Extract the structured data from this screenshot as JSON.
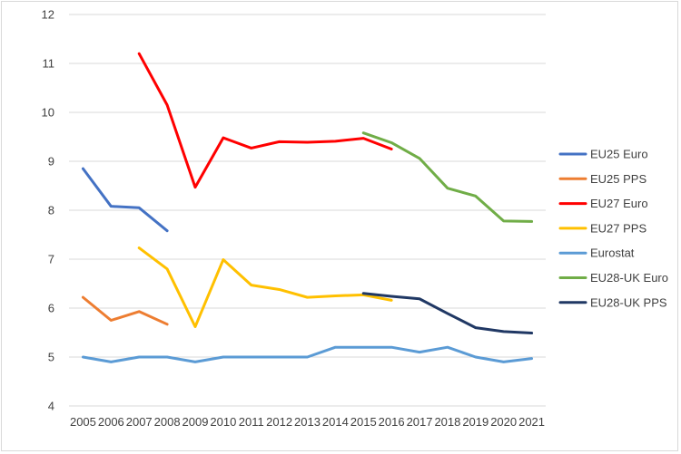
{
  "chart_data": {
    "type": "line",
    "title": "",
    "xlabel": "",
    "ylabel": "",
    "ylim": [
      4,
      12
    ],
    "yticks": [
      4,
      5,
      6,
      7,
      8,
      9,
      10,
      11,
      12
    ],
    "grid": true,
    "legend_position": "right",
    "x": [
      "2005",
      "2006",
      "2007",
      "2008",
      "2009",
      "2010",
      "2011",
      "2012",
      "2013",
      "2014",
      "2015",
      "2016",
      "2017",
      "2018",
      "2019",
      "2020",
      "2021"
    ],
    "series": [
      {
        "name": "EU25 Euro",
        "color": "#4472C4",
        "values": [
          8.85,
          8.08,
          8.05,
          7.58,
          null,
          null,
          null,
          null,
          null,
          null,
          null,
          null,
          null,
          null,
          null,
          null,
          null
        ]
      },
      {
        "name": "EU25 PPS",
        "color": "#ED7D31",
        "values": [
          6.22,
          5.75,
          5.93,
          5.67,
          null,
          null,
          null,
          null,
          null,
          null,
          null,
          null,
          null,
          null,
          null,
          null,
          null
        ]
      },
      {
        "name": "EU27 Euro",
        "color": "#FF0000",
        "values": [
          null,
          null,
          11.2,
          10.15,
          8.47,
          9.48,
          9.27,
          9.4,
          9.39,
          9.41,
          9.47,
          9.25,
          null,
          null,
          null,
          null,
          null
        ]
      },
      {
        "name": "EU27 PPS",
        "color": "#FFC000",
        "values": [
          null,
          null,
          7.23,
          6.8,
          5.62,
          6.99,
          6.47,
          6.38,
          6.22,
          6.25,
          6.27,
          6.16,
          null,
          null,
          null,
          null,
          null
        ]
      },
      {
        "name": "Eurostat",
        "color": "#5B9BD5",
        "values": [
          5.0,
          4.9,
          5.0,
          5.0,
          4.9,
          5.0,
          5.0,
          5.0,
          5.0,
          5.2,
          5.2,
          5.2,
          5.1,
          5.2,
          5.0,
          4.9,
          4.97
        ]
      },
      {
        "name": "EU28-UK Euro",
        "color": "#70AD47",
        "values": [
          null,
          null,
          null,
          null,
          null,
          null,
          null,
          null,
          null,
          null,
          9.58,
          9.38,
          9.06,
          8.45,
          8.29,
          7.78,
          7.77
        ]
      },
      {
        "name": "EU28-UK PPS",
        "color": "#203864",
        "values": [
          null,
          null,
          null,
          null,
          null,
          null,
          null,
          null,
          null,
          null,
          6.3,
          6.24,
          6.19,
          5.89,
          5.6,
          5.52,
          5.49
        ]
      }
    ]
  }
}
